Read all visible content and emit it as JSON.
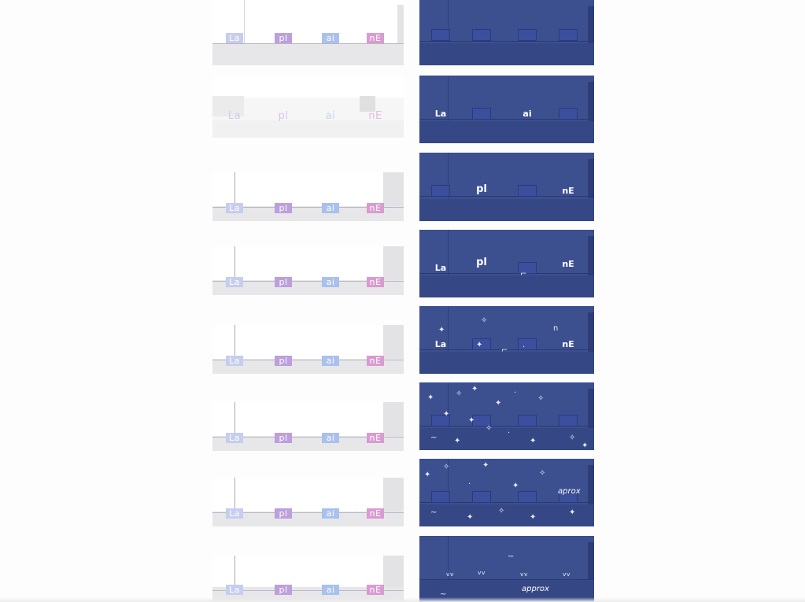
{
  "glyphs": [
    "La",
    "pl",
    "ai",
    "nE"
  ],
  "caption": "approx",
  "caption_alt": "aprox"
}
